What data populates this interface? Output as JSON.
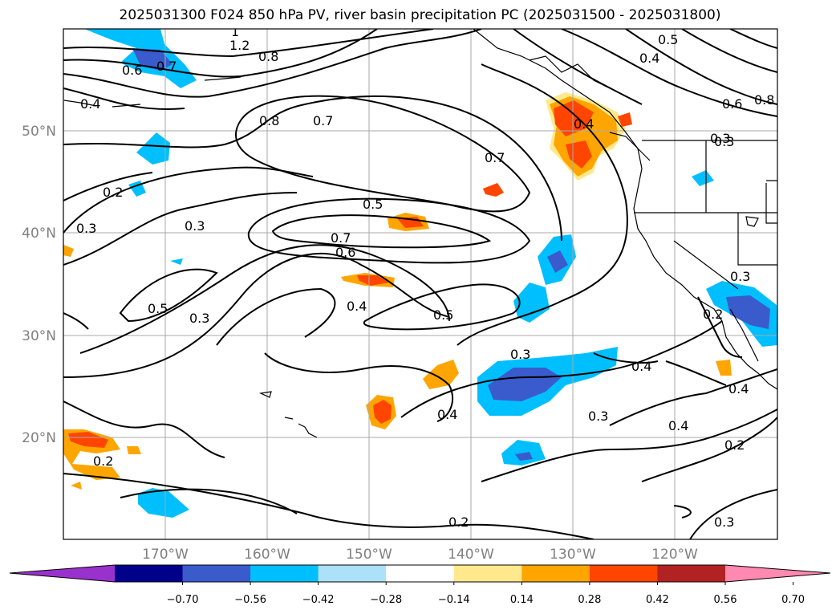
{
  "title": "2025031300 F024 850 hPa PV, river basin precipitation PC (2025031500 - 2025031800)",
  "map": {
    "lat_labels": [
      "50°N",
      "40°N",
      "30°N",
      "20°N"
    ],
    "lon_labels": [
      "170°W",
      "160°W",
      "150°W",
      "140°W",
      "130°W",
      "120°W"
    ],
    "contour_labels": [
      "1.2",
      "1",
      "0.8",
      "0.7",
      "0.6",
      "0.4",
      "0.5",
      "0.4",
      "0.6",
      "0.8",
      "0.8",
      "0.7",
      "0.7",
      "0.3",
      "0.2",
      "0.3",
      "0.3",
      "0.5",
      "0.7",
      "0.6",
      "0.5",
      "0.4",
      "0.3",
      "0.5",
      "0.3",
      "0.4",
      "0.4",
      "0.3",
      "0.4",
      "0.2",
      "0.2",
      "0.3",
      "0.3",
      "0.2",
      "0.4",
      "0.4",
      "0.3",
      "0.2"
    ]
  },
  "colorbar": {
    "ticks": [
      "−0.70",
      "−0.56",
      "−0.42",
      "−0.28",
      "−0.14",
      "0.14",
      "0.28",
      "0.42",
      "0.56",
      "0.70"
    ],
    "colors": [
      "#9932CC",
      "#00008B",
      "#3A5BCC",
      "#00BFFF",
      "#ADE1FA",
      "#FFFFFF",
      "#FFE98C",
      "#FFA500",
      "#FF4500",
      "#B22222",
      "#FF89B0"
    ]
  }
}
